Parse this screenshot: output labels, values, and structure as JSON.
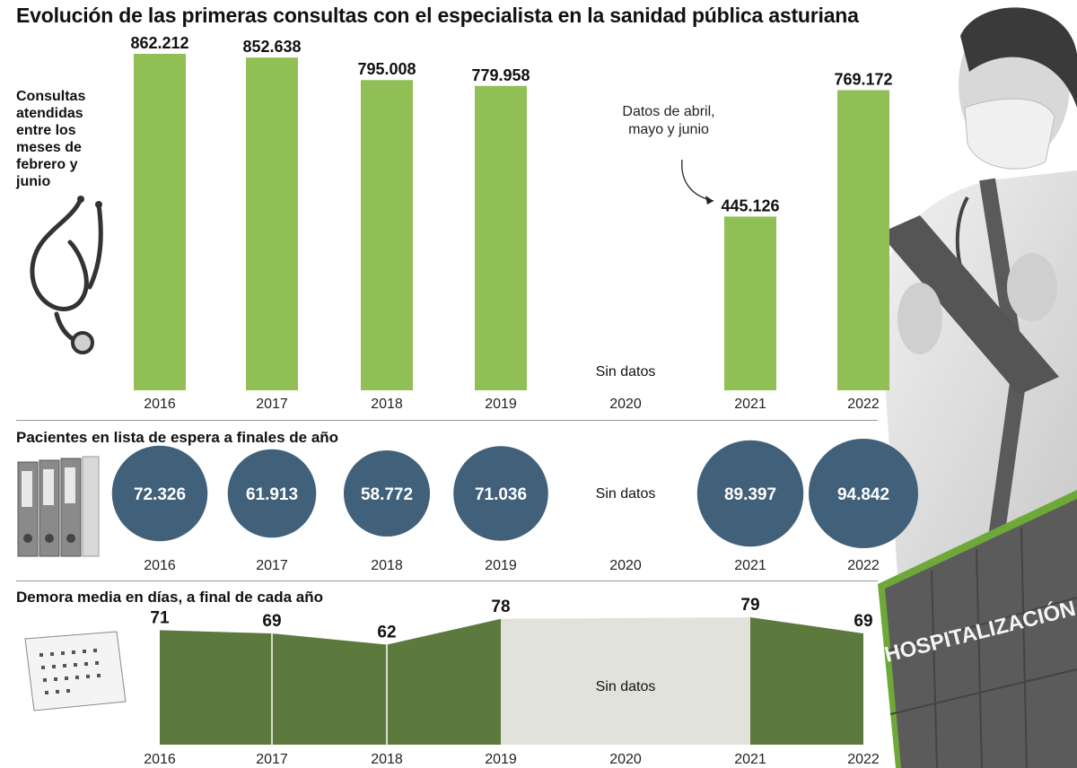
{
  "title": "Evolución de las primeras consultas con el especialista en la sanidad pública asturiana",
  "colors": {
    "bar_green": "#8fbf55",
    "circle_blue": "#41607a",
    "area_green": "#5d7a3e",
    "no_data_gray": "#e2e2dc",
    "rule_gray": "#9a9a9a"
  },
  "section1": {
    "side_label": "Consultas atendidas entre los meses de febrero y junio",
    "annotation": "Datos de abril, mayo y junio",
    "no_data_label": "Sin datos"
  },
  "section2": {
    "title": "Pacientes en lista de espera a finales de año",
    "no_data_label": "Sin datos"
  },
  "section3": {
    "title": "Demora media en días, a final de cada año",
    "no_data_label": "Sin datos"
  },
  "illustrations": {
    "stethoscope": "stethoscope-icon",
    "binders": "binders-icon",
    "calendar": "calendar-icon",
    "doctor_photo": "doctor-photo",
    "hospital_sign": "HOSPITALIZACIÓN"
  },
  "chart_data": [
    {
      "type": "bar",
      "title": "Consultas atendidas entre los meses de febrero y junio",
      "categories": [
        "2016",
        "2017",
        "2018",
        "2019",
        "2020",
        "2021",
        "2022"
      ],
      "values": [
        862212,
        852638,
        795008,
        779958,
        null,
        445126,
        769172
      ],
      "value_labels": [
        "862.212",
        "852.638",
        "795.008",
        "779.958",
        "",
        "445.126",
        "769.172"
      ],
      "ylim": [
        0,
        862212
      ],
      "xlabel": "",
      "ylabel": ""
    },
    {
      "type": "bubble",
      "title": "Pacientes en lista de espera a finales de año",
      "categories": [
        "2016",
        "2017",
        "2018",
        "2019",
        "2020",
        "2021",
        "2022"
      ],
      "values": [
        72326,
        61913,
        58772,
        71036,
        null,
        89397,
        94842
      ],
      "value_labels": [
        "72.326",
        "61.913",
        "58.772",
        "71.036",
        "",
        "89.397",
        "94.842"
      ]
    },
    {
      "type": "area",
      "title": "Demora media en días, a final de cada año",
      "categories": [
        "2016",
        "2017",
        "2018",
        "2019",
        "2020",
        "2021",
        "2022"
      ],
      "values": [
        71,
        69,
        62,
        78,
        null,
        79,
        69
      ],
      "value_labels": [
        "71",
        "69",
        "62",
        "78",
        "",
        "79",
        "69"
      ],
      "ylim": [
        0,
        79
      ]
    }
  ]
}
